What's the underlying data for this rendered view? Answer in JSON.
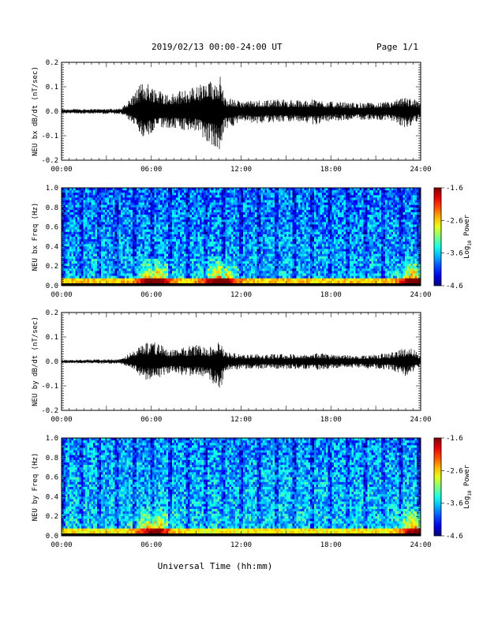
{
  "header": {
    "title": "2019/02/13  00:00-24:00 UT",
    "page": "Page 1/1"
  },
  "xlabel": "Universal Time (hh:mm)",
  "colors": {
    "trace": "#000000",
    "background": "#ffffff"
  },
  "chart_data": [
    {
      "type": "line",
      "ylabel": "NEU bx dB/dt (nT/sec)",
      "ylim": [
        -0.2,
        0.2
      ],
      "yticks": [
        "0.2",
        "0.1",
        "0.0",
        "-0.1",
        "-0.2"
      ],
      "xlim": [
        "00:00",
        "24:00"
      ],
      "xticks": [
        "00:00",
        "06:00",
        "12:00",
        "18:00",
        "24:00"
      ],
      "series": [
        {
          "x_hours": [
            0,
            2,
            4,
            4.9,
            5.5,
            6.3,
            7.2,
            8.3,
            9.1,
            9.8,
            10.6,
            10.9,
            12,
            13,
            14.5,
            16,
            17,
            18,
            19.5,
            21,
            22,
            23,
            23.6,
            24
          ],
          "envelope_max": [
            0.01,
            0.01,
            0.012,
            0.08,
            0.13,
            0.1,
            0.07,
            0.09,
            0.11,
            0.12,
            0.15,
            0.06,
            0.04,
            0.045,
            0.05,
            0.045,
            0.05,
            0.04,
            0.035,
            0.035,
            0.04,
            0.06,
            0.05,
            0.03
          ],
          "envelope_min": [
            -0.01,
            -0.01,
            -0.012,
            -0.06,
            -0.11,
            -0.08,
            -0.07,
            -0.08,
            -0.09,
            -0.13,
            -0.17,
            -0.08,
            -0.04,
            -0.05,
            -0.045,
            -0.045,
            -0.055,
            -0.04,
            -0.035,
            -0.035,
            -0.04,
            -0.07,
            -0.05,
            -0.03
          ]
        }
      ]
    },
    {
      "type": "heatmap",
      "ylabel": "NEU bx Freq (Hz)",
      "ylim": [
        0.0,
        1.0
      ],
      "yticks": [
        "1.0",
        "0.8",
        "0.6",
        "0.4",
        "0.2",
        "0.0"
      ],
      "xlim": [
        "00:00",
        "24:00"
      ],
      "xticks": [
        "00:00",
        "06:00",
        "12:00",
        "18:00",
        "24:00"
      ],
      "colorbar": {
        "label": "Log10 Power",
        "label_main": "Log",
        "label_sub": "10",
        "label_tail": " Power",
        "range": [
          -4.6,
          -1.6
        ],
        "ticks": [
          "-1.6",
          "-2.6",
          "-3.6",
          "-4.6"
        ]
      },
      "features": {
        "background_level": -3.9,
        "low_freq_band_level": -2.6,
        "enhanced_hours": [
          6.2,
          10.6,
          23.7
        ],
        "enhanced_level": -2.3
      }
    },
    {
      "type": "line",
      "ylabel": "NEU by dB/dt (nT/sec)",
      "ylim": [
        -0.2,
        0.2
      ],
      "yticks": [
        "0.2",
        "0.1",
        "0.0",
        "-0.1",
        "-0.2"
      ],
      "xlim": [
        "00:00",
        "24:00"
      ],
      "xticks": [
        "00:00",
        "06:00",
        "12:00",
        "18:00",
        "24:00"
      ],
      "series": [
        {
          "x_hours": [
            0,
            2,
            4,
            4.9,
            5.5,
            6.3,
            7.2,
            8.3,
            9.1,
            9.8,
            10.6,
            10.9,
            12,
            13,
            14.5,
            16,
            17,
            18,
            19.5,
            21,
            22,
            23,
            23.6,
            24
          ],
          "envelope_max": [
            0.008,
            0.008,
            0.01,
            0.05,
            0.08,
            0.08,
            0.05,
            0.06,
            0.07,
            0.06,
            0.08,
            0.04,
            0.03,
            0.03,
            0.03,
            0.03,
            0.035,
            0.03,
            0.025,
            0.03,
            0.035,
            0.06,
            0.05,
            0.02
          ],
          "envelope_min": [
            -0.008,
            -0.008,
            -0.01,
            -0.04,
            -0.08,
            -0.07,
            -0.05,
            -0.06,
            -0.06,
            -0.07,
            -0.13,
            -0.04,
            -0.03,
            -0.03,
            -0.03,
            -0.03,
            -0.035,
            -0.03,
            -0.025,
            -0.03,
            -0.035,
            -0.06,
            -0.04,
            -0.02
          ]
        }
      ]
    },
    {
      "type": "heatmap",
      "ylabel": "NEU by Freq (Hz)",
      "ylim": [
        0.0,
        1.0
      ],
      "yticks": [
        "1.0",
        "0.8",
        "0.6",
        "0.4",
        "0.2",
        "0.0"
      ],
      "xlim": [
        "00:00",
        "24:00"
      ],
      "xticks": [
        "00:00",
        "06:00",
        "12:00",
        "18:00",
        "24:00"
      ],
      "colorbar": {
        "label": "Log10 Power",
        "label_main": "Log",
        "label_sub": "10",
        "label_tail": " Power",
        "range": [
          -4.6,
          -1.6
        ],
        "ticks": [
          "-1.6",
          "-2.6",
          "-3.6",
          "-4.6"
        ]
      },
      "features": {
        "background_level": -3.8,
        "low_freq_band_level": -2.7,
        "enhanced_hours": [
          6.2,
          23.7
        ],
        "enhanced_level": -2.4
      }
    }
  ]
}
